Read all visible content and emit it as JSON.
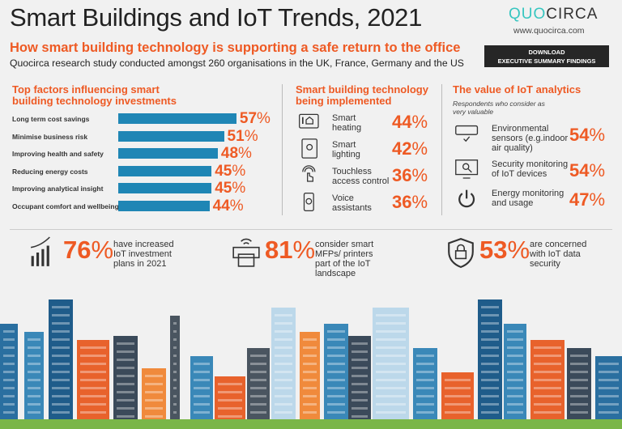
{
  "header": {
    "title": "Smart Buildings and IoT Trends, 2021",
    "subtitle": "How smart building technology is supporting a safe return to the office",
    "description": "Quocirca research study conducted amongst 260 organisations in the UK, France, Germany and the US",
    "logo_quo": "QUO",
    "logo_circa": "CIRCA",
    "url": "www.quocirca.com",
    "download_line1": "DOWNLOAD",
    "download_line2": "EXECUTIVE SUMMARY FINDINGS"
  },
  "colors": {
    "accent": "#ee5a24",
    "bar": "#1f86b5",
    "logo": "#37c6c0"
  },
  "chart_data": {
    "type": "bar",
    "orientation": "horizontal",
    "title": "Top factors influencing smart building technology investments",
    "categories": [
      "Long term cost savings",
      "Minimise business risk",
      "Improving health and safety",
      "Reducing energy costs",
      "Improving analytical insight",
      "Occupant comfort and wellbeing"
    ],
    "values": [
      57,
      51,
      48,
      45,
      45,
      44
    ],
    "unit": "%"
  },
  "implemented": {
    "title": "Smart building technology being implemented",
    "items": [
      {
        "icon": "thermostat-home-icon",
        "line1": "Smart",
        "line2": "heating",
        "value": "44"
      },
      {
        "icon": "light-bulb-tablet-icon",
        "line1": "Smart",
        "line2": "lighting",
        "value": "42"
      },
      {
        "icon": "touch-hand-icon",
        "line1": "Touchless",
        "line2": "access control",
        "value": "36"
      },
      {
        "icon": "voice-phone-icon",
        "line1": "Voice",
        "line2": "assistants",
        "value": "36"
      }
    ]
  },
  "analytics": {
    "title": "The value of IoT analytics",
    "note": "Respondents who consider as very valuable",
    "items": [
      {
        "icon": "air-conditioner-icon",
        "text": "Environmental sensors (e.g.indoor air quality)",
        "value": "54"
      },
      {
        "icon": "monitor-search-icon",
        "text": "Security monitoring of IoT devices",
        "value": "54"
      },
      {
        "icon": "power-icon",
        "text": "Energy monitoring and usage",
        "value": "47"
      }
    ]
  },
  "stats": [
    {
      "icon": "growth-chart-icon",
      "value": "76",
      "text": "have increased IoT investment plans in 2021"
    },
    {
      "icon": "wifi-printer-icon",
      "value": "81",
      "text": "consider smart MFPs/ printers part of the IoT landscape"
    },
    {
      "icon": "shield-lock-icon",
      "value": "53",
      "text": "are concerned with IoT data security"
    }
  ],
  "percent_sign": "%"
}
